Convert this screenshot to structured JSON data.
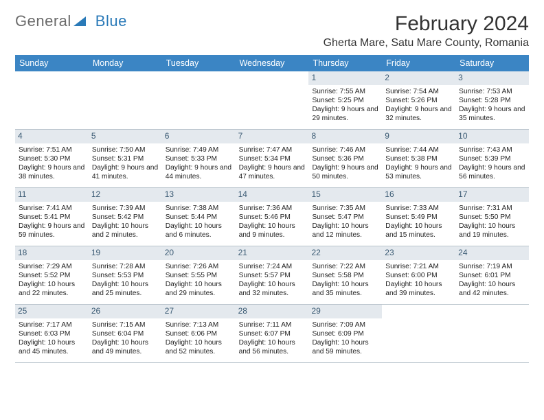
{
  "brand": {
    "part1": "General",
    "part2": "Blue"
  },
  "title": "February 2024",
  "location": "Gherta Mare, Satu Mare County, Romania",
  "colors": {
    "header_bg": "#3b85c4",
    "daynum_bg": "#e4e9ee",
    "divider": "#b9c4cc",
    "title_text": "#333333",
    "body_text": "#222222",
    "logo_gray": "#6b6b6b",
    "logo_blue": "#2a7ab8"
  },
  "font": {
    "family": "Arial",
    "title_size_pt": 22,
    "body_size_pt": 8,
    "dayname_size_pt": 9
  },
  "daynames": [
    "Sunday",
    "Monday",
    "Tuesday",
    "Wednesday",
    "Thursday",
    "Friday",
    "Saturday"
  ],
  "weeks": [
    [
      {
        "n": "",
        "sr": "",
        "ss": "",
        "dl": ""
      },
      {
        "n": "",
        "sr": "",
        "ss": "",
        "dl": ""
      },
      {
        "n": "",
        "sr": "",
        "ss": "",
        "dl": ""
      },
      {
        "n": "",
        "sr": "",
        "ss": "",
        "dl": ""
      },
      {
        "n": "1",
        "sr": "Sunrise: 7:55 AM",
        "ss": "Sunset: 5:25 PM",
        "dl": "Daylight: 9 hours and 29 minutes."
      },
      {
        "n": "2",
        "sr": "Sunrise: 7:54 AM",
        "ss": "Sunset: 5:26 PM",
        "dl": "Daylight: 9 hours and 32 minutes."
      },
      {
        "n": "3",
        "sr": "Sunrise: 7:53 AM",
        "ss": "Sunset: 5:28 PM",
        "dl": "Daylight: 9 hours and 35 minutes."
      }
    ],
    [
      {
        "n": "4",
        "sr": "Sunrise: 7:51 AM",
        "ss": "Sunset: 5:30 PM",
        "dl": "Daylight: 9 hours and 38 minutes."
      },
      {
        "n": "5",
        "sr": "Sunrise: 7:50 AM",
        "ss": "Sunset: 5:31 PM",
        "dl": "Daylight: 9 hours and 41 minutes."
      },
      {
        "n": "6",
        "sr": "Sunrise: 7:49 AM",
        "ss": "Sunset: 5:33 PM",
        "dl": "Daylight: 9 hours and 44 minutes."
      },
      {
        "n": "7",
        "sr": "Sunrise: 7:47 AM",
        "ss": "Sunset: 5:34 PM",
        "dl": "Daylight: 9 hours and 47 minutes."
      },
      {
        "n": "8",
        "sr": "Sunrise: 7:46 AM",
        "ss": "Sunset: 5:36 PM",
        "dl": "Daylight: 9 hours and 50 minutes."
      },
      {
        "n": "9",
        "sr": "Sunrise: 7:44 AM",
        "ss": "Sunset: 5:38 PM",
        "dl": "Daylight: 9 hours and 53 minutes."
      },
      {
        "n": "10",
        "sr": "Sunrise: 7:43 AM",
        "ss": "Sunset: 5:39 PM",
        "dl": "Daylight: 9 hours and 56 minutes."
      }
    ],
    [
      {
        "n": "11",
        "sr": "Sunrise: 7:41 AM",
        "ss": "Sunset: 5:41 PM",
        "dl": "Daylight: 9 hours and 59 minutes."
      },
      {
        "n": "12",
        "sr": "Sunrise: 7:39 AM",
        "ss": "Sunset: 5:42 PM",
        "dl": "Daylight: 10 hours and 2 minutes."
      },
      {
        "n": "13",
        "sr": "Sunrise: 7:38 AM",
        "ss": "Sunset: 5:44 PM",
        "dl": "Daylight: 10 hours and 6 minutes."
      },
      {
        "n": "14",
        "sr": "Sunrise: 7:36 AM",
        "ss": "Sunset: 5:46 PM",
        "dl": "Daylight: 10 hours and 9 minutes."
      },
      {
        "n": "15",
        "sr": "Sunrise: 7:35 AM",
        "ss": "Sunset: 5:47 PM",
        "dl": "Daylight: 10 hours and 12 minutes."
      },
      {
        "n": "16",
        "sr": "Sunrise: 7:33 AM",
        "ss": "Sunset: 5:49 PM",
        "dl": "Daylight: 10 hours and 15 minutes."
      },
      {
        "n": "17",
        "sr": "Sunrise: 7:31 AM",
        "ss": "Sunset: 5:50 PM",
        "dl": "Daylight: 10 hours and 19 minutes."
      }
    ],
    [
      {
        "n": "18",
        "sr": "Sunrise: 7:29 AM",
        "ss": "Sunset: 5:52 PM",
        "dl": "Daylight: 10 hours and 22 minutes."
      },
      {
        "n": "19",
        "sr": "Sunrise: 7:28 AM",
        "ss": "Sunset: 5:53 PM",
        "dl": "Daylight: 10 hours and 25 minutes."
      },
      {
        "n": "20",
        "sr": "Sunrise: 7:26 AM",
        "ss": "Sunset: 5:55 PM",
        "dl": "Daylight: 10 hours and 29 minutes."
      },
      {
        "n": "21",
        "sr": "Sunrise: 7:24 AM",
        "ss": "Sunset: 5:57 PM",
        "dl": "Daylight: 10 hours and 32 minutes."
      },
      {
        "n": "22",
        "sr": "Sunrise: 7:22 AM",
        "ss": "Sunset: 5:58 PM",
        "dl": "Daylight: 10 hours and 35 minutes."
      },
      {
        "n": "23",
        "sr": "Sunrise: 7:21 AM",
        "ss": "Sunset: 6:00 PM",
        "dl": "Daylight: 10 hours and 39 minutes."
      },
      {
        "n": "24",
        "sr": "Sunrise: 7:19 AM",
        "ss": "Sunset: 6:01 PM",
        "dl": "Daylight: 10 hours and 42 minutes."
      }
    ],
    [
      {
        "n": "25",
        "sr": "Sunrise: 7:17 AM",
        "ss": "Sunset: 6:03 PM",
        "dl": "Daylight: 10 hours and 45 minutes."
      },
      {
        "n": "26",
        "sr": "Sunrise: 7:15 AM",
        "ss": "Sunset: 6:04 PM",
        "dl": "Daylight: 10 hours and 49 minutes."
      },
      {
        "n": "27",
        "sr": "Sunrise: 7:13 AM",
        "ss": "Sunset: 6:06 PM",
        "dl": "Daylight: 10 hours and 52 minutes."
      },
      {
        "n": "28",
        "sr": "Sunrise: 7:11 AM",
        "ss": "Sunset: 6:07 PM",
        "dl": "Daylight: 10 hours and 56 minutes."
      },
      {
        "n": "29",
        "sr": "Sunrise: 7:09 AM",
        "ss": "Sunset: 6:09 PM",
        "dl": "Daylight: 10 hours and 59 minutes."
      },
      {
        "n": "",
        "sr": "",
        "ss": "",
        "dl": ""
      },
      {
        "n": "",
        "sr": "",
        "ss": "",
        "dl": ""
      }
    ]
  ]
}
